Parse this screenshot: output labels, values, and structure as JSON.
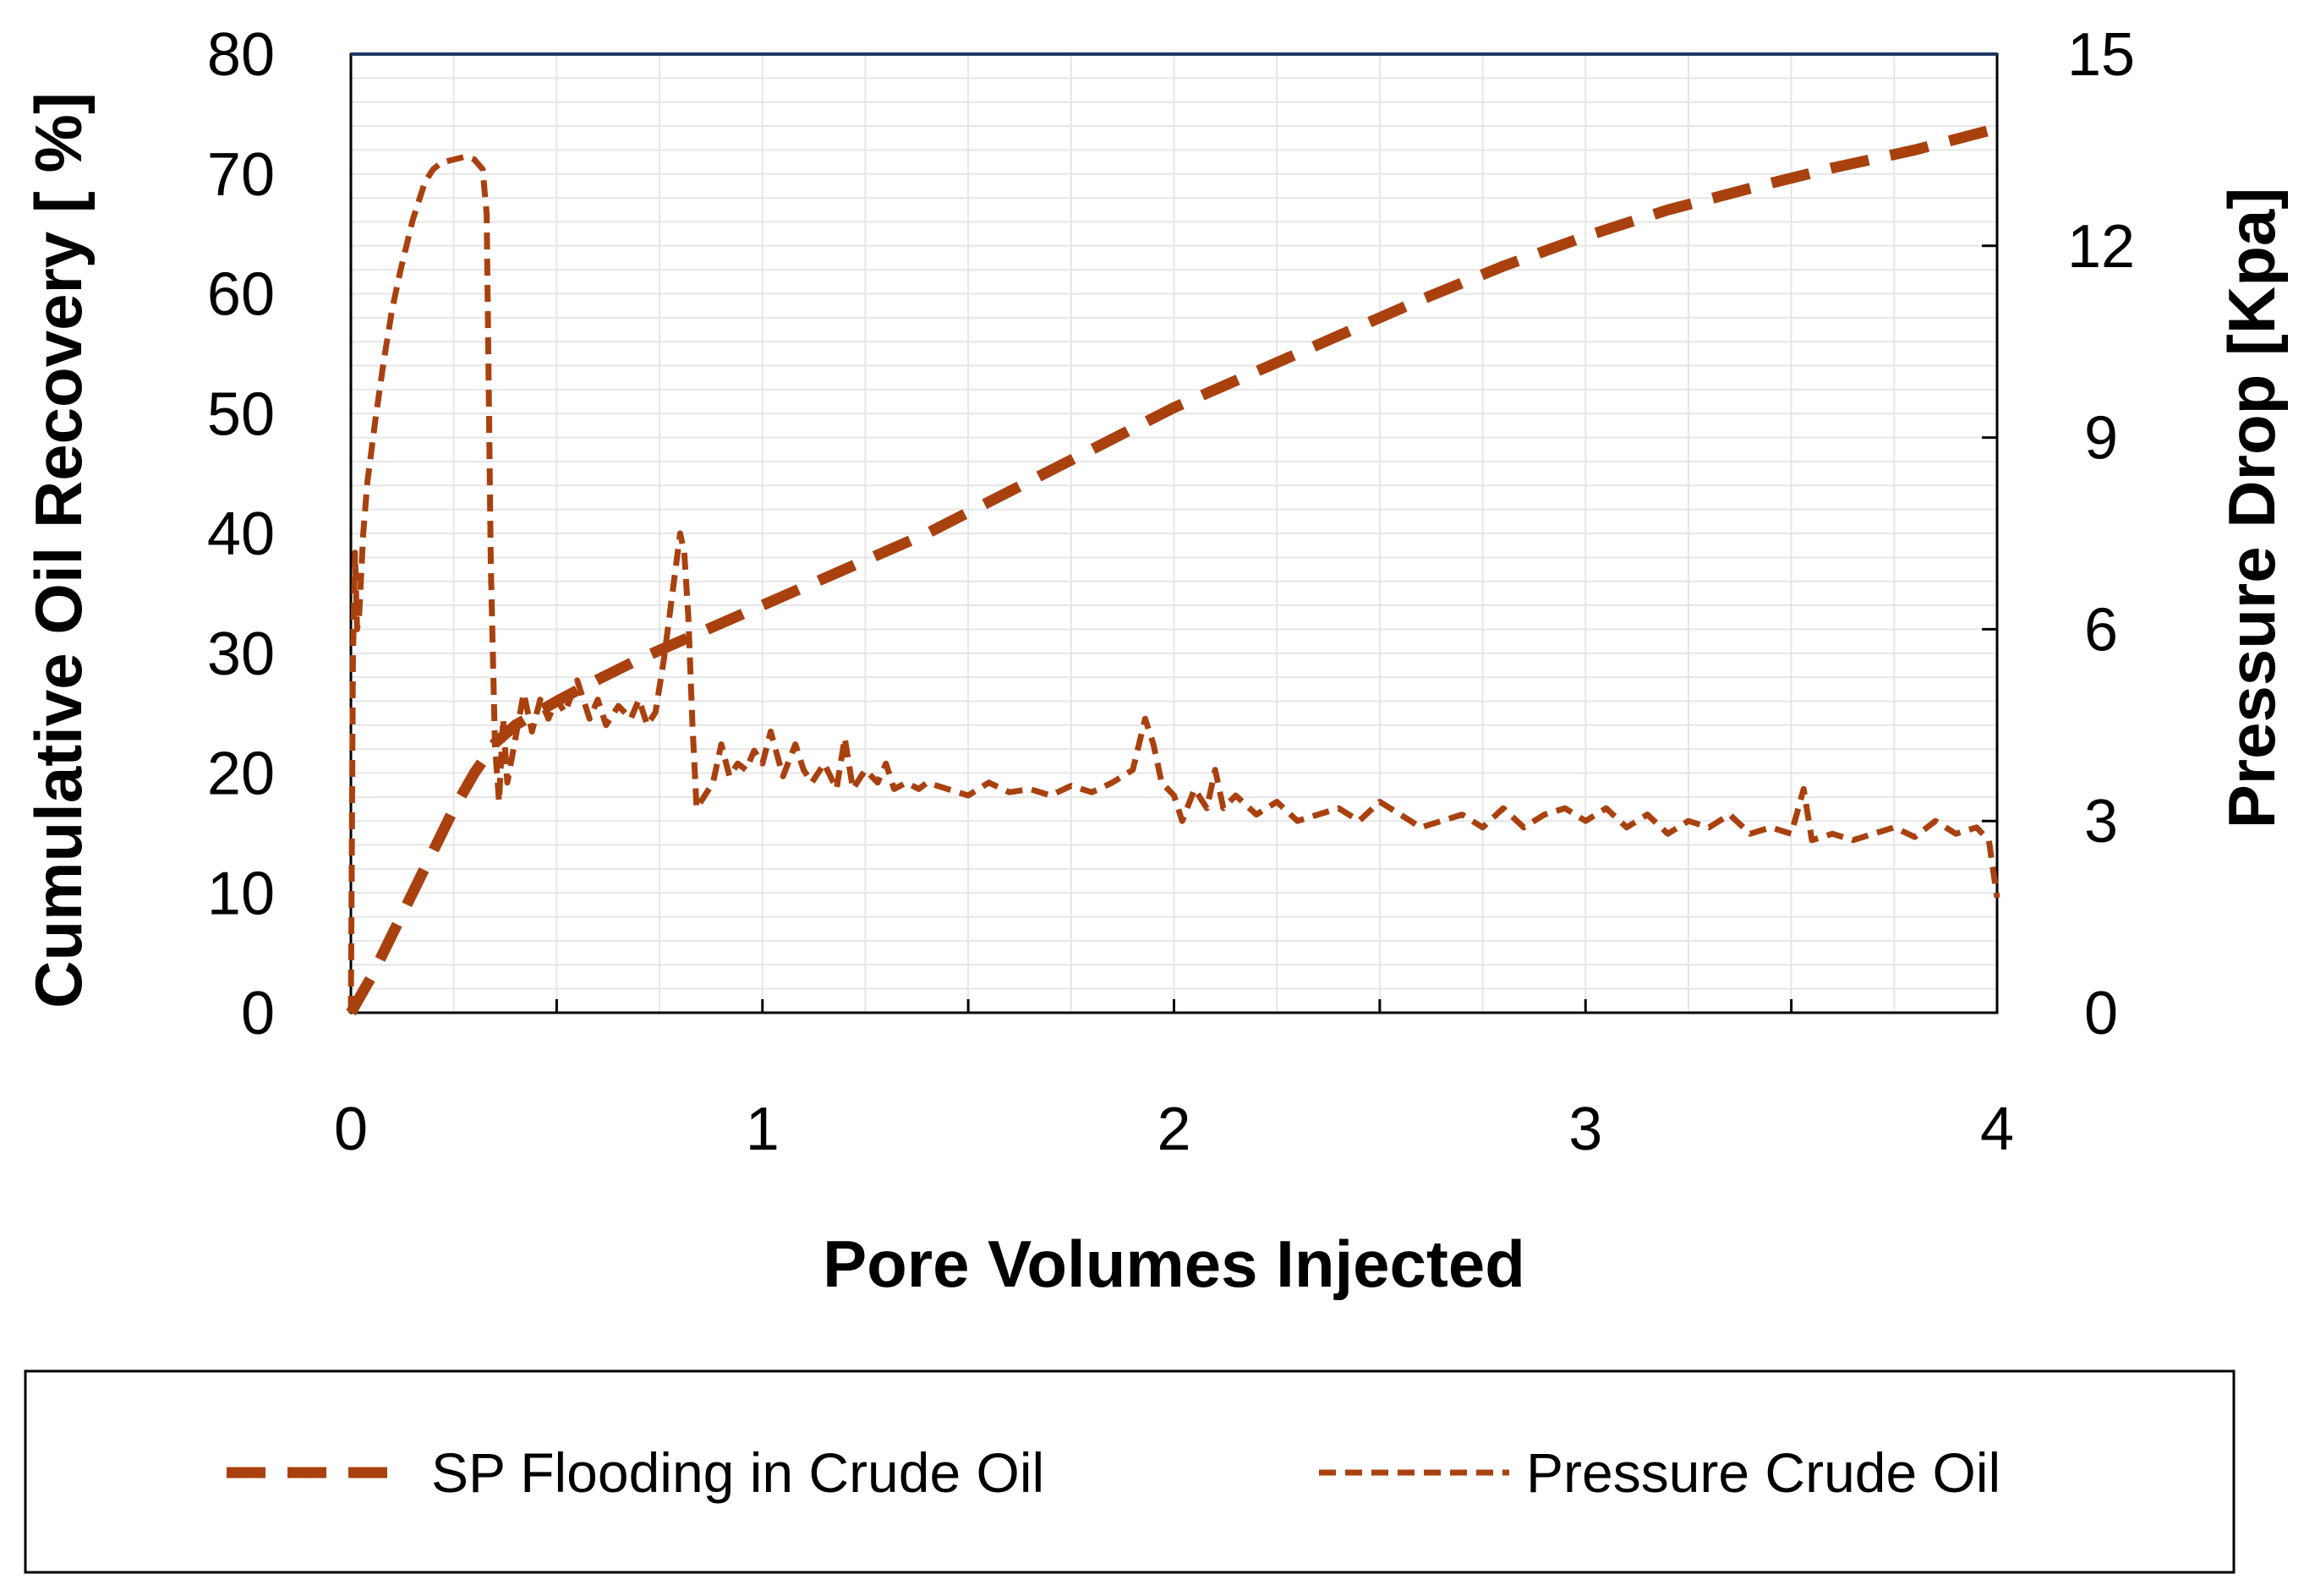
{
  "chart_data": {
    "type": "line",
    "xlabel": "Pore Volumes Injected",
    "ylabel": "Cumulative Oil Recovery [ %]",
    "y2label": "Pressure Drop [Kpa]",
    "xlim": [
      0,
      4
    ],
    "ylim": [
      0,
      80
    ],
    "y2lim": [
      0,
      15
    ],
    "xticks": [
      "0",
      "1",
      "2",
      "3",
      "4"
    ],
    "yticks": [
      "0",
      "10",
      "20",
      "30",
      "40",
      "50",
      "60",
      "70",
      "80"
    ],
    "y2ticks": [
      "0",
      "3",
      "6",
      "9",
      "12",
      "15"
    ],
    "grid": true,
    "legend_position": "bottom",
    "colors": {
      "series": "#A9410F",
      "frame": "#000000",
      "top_border": "#1F3864",
      "grid": "#E6E6E6"
    },
    "series": [
      {
        "name": "SP Flooding in Crude Oil",
        "axis": "left",
        "dash": "long",
        "x": [
          0,
          0.05,
          0.1,
          0.15,
          0.2,
          0.25,
          0.3,
          0.35,
          0.4,
          0.5,
          0.6,
          0.7,
          0.8,
          0.9,
          1.0,
          1.2,
          1.4,
          1.6,
          1.8,
          2.0,
          2.2,
          2.4,
          2.6,
          2.8,
          3.0,
          3.2,
          3.4,
          3.6,
          3.8,
          4.0
        ],
        "y": [
          0,
          3,
          6.5,
          10,
          13.5,
          17,
          20,
          22.5,
          24,
          26,
          27.8,
          29.5,
          31,
          32.5,
          34,
          37,
          40,
          43.5,
          47,
          50.5,
          53.5,
          56.5,
          59.5,
          62.3,
          64.8,
          67,
          68.8,
          70.5,
          72,
          73.8
        ]
      },
      {
        "name": "Pressure Crude Oil",
        "axis": "right",
        "dash": "short",
        "x": [
          0,
          0.005,
          0.01,
          0.015,
          0.02,
          0.03,
          0.04,
          0.06,
          0.08,
          0.1,
          0.12,
          0.15,
          0.18,
          0.2,
          0.22,
          0.25,
          0.28,
          0.3,
          0.32,
          0.33,
          0.34,
          0.35,
          0.36,
          0.37,
          0.38,
          0.4,
          0.42,
          0.44,
          0.46,
          0.48,
          0.5,
          0.52,
          0.55,
          0.58,
          0.6,
          0.62,
          0.65,
          0.68,
          0.7,
          0.72,
          0.74,
          0.76,
          0.78,
          0.8,
          0.81,
          0.82,
          0.83,
          0.84,
          0.86,
          0.88,
          0.9,
          0.92,
          0.94,
          0.96,
          0.98,
          1.0,
          1.02,
          1.05,
          1.08,
          1.1,
          1.12,
          1.15,
          1.18,
          1.2,
          1.22,
          1.25,
          1.28,
          1.3,
          1.32,
          1.35,
          1.38,
          1.4,
          1.45,
          1.5,
          1.55,
          1.6,
          1.65,
          1.7,
          1.75,
          1.8,
          1.85,
          1.9,
          1.93,
          1.95,
          1.97,
          2.0,
          2.02,
          2.05,
          2.08,
          2.1,
          2.12,
          2.15,
          2.2,
          2.25,
          2.3,
          2.35,
          2.4,
          2.45,
          2.5,
          2.55,
          2.6,
          2.65,
          2.7,
          2.75,
          2.8,
          2.85,
          2.9,
          2.95,
          3.0,
          3.05,
          3.1,
          3.15,
          3.2,
          3.25,
          3.3,
          3.35,
          3.4,
          3.45,
          3.5,
          3.53,
          3.55,
          3.6,
          3.65,
          3.7,
          3.75,
          3.8,
          3.85,
          3.9,
          3.95,
          3.98,
          4.0
        ],
        "y": [
          0,
          5.5,
          7.2,
          6.0,
          6.2,
          7.5,
          8.3,
          9.3,
          10.2,
          11.0,
          11.6,
          12.4,
          13.0,
          13.2,
          13.3,
          13.35,
          13.4,
          13.35,
          13.2,
          12.5,
          7.0,
          4.2,
          3.3,
          4.6,
          3.6,
          4.3,
          5.0,
          4.4,
          4.9,
          4.6,
          4.9,
          4.7,
          5.2,
          4.6,
          4.9,
          4.5,
          4.8,
          4.6,
          4.9,
          4.5,
          4.7,
          5.5,
          6.5,
          7.5,
          7.2,
          6.2,
          4.5,
          3.2,
          3.4,
          3.6,
          4.2,
          3.7,
          3.9,
          3.8,
          4.1,
          3.9,
          4.4,
          3.7,
          4.2,
          3.8,
          3.6,
          3.9,
          3.5,
          4.3,
          3.5,
          3.8,
          3.6,
          3.9,
          3.5,
          3.6,
          3.5,
          3.6,
          3.5,
          3.4,
          3.6,
          3.45,
          3.5,
          3.4,
          3.55,
          3.45,
          3.6,
          3.8,
          4.6,
          4.2,
          3.6,
          3.4,
          3.0,
          3.5,
          3.2,
          3.8,
          3.2,
          3.4,
          3.1,
          3.3,
          3.0,
          3.1,
          3.2,
          3.0,
          3.3,
          3.1,
          2.9,
          3.0,
          3.1,
          2.9,
          3.2,
          2.9,
          3.1,
          3.2,
          3.0,
          3.2,
          2.9,
          3.1,
          2.8,
          3.0,
          2.9,
          3.1,
          2.8,
          2.9,
          2.8,
          3.5,
          2.7,
          2.8,
          2.7,
          2.8,
          2.9,
          2.75,
          3.0,
          2.8,
          2.9,
          2.7,
          1.8
        ]
      }
    ]
  }
}
